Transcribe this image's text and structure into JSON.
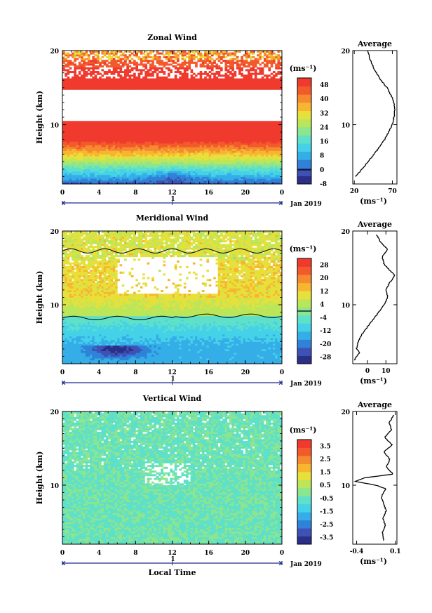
{
  "chart_data": [
    {
      "type": "heatmap",
      "title": "Zonal Wind",
      "xlabel": "",
      "ylabel": "Height (km)",
      "xlim": [
        0,
        24
      ],
      "ylim": [
        2,
        20
      ],
      "x_ticks": [
        "0",
        "4",
        "8",
        "12",
        "16",
        "20",
        "0"
      ],
      "y_ticks": [
        "10",
        "20"
      ],
      "date_label": "Jan 2019",
      "day_label": "1",
      "colorbar": {
        "unit": "(ms⁻¹)",
        "min": -8,
        "max": 52,
        "ticks": [
          "-8",
          "0",
          "8",
          "16",
          "24",
          "32",
          "40",
          "48"
        ],
        "tick_values": [
          -8,
          0,
          8,
          16,
          24,
          32,
          40,
          48
        ],
        "colors": [
          "#2b2f88",
          "#3e52b5",
          "#2f82d8",
          "#35aee8",
          "#45d2e8",
          "#5fe0c8",
          "#8ce58f",
          "#bce65a",
          "#e8e03a",
          "#f7b531",
          "#f68a2e",
          "#f25a2c",
          "#f03a2e"
        ],
        "contour_at": 0
      },
      "profile": {
        "title": "Average",
        "xlabel": "(ms⁻¹)",
        "x_ticks": [
          "20",
          "70"
        ],
        "x_tick_values": [
          20,
          70
        ],
        "xlim": [
          18,
          76
        ],
        "heights": [
          3,
          4,
          5,
          6,
          7,
          8,
          9,
          10,
          11,
          12,
          13,
          14,
          15,
          16,
          17,
          18,
          19,
          20
        ],
        "values": [
          22,
          30,
          38,
          46,
          53,
          60,
          65,
          70,
          72,
          73,
          72,
          68,
          63,
          55,
          49,
          44,
          40,
          38
        ]
      }
    },
    {
      "type": "heatmap",
      "title": "Meridional Wind",
      "xlabel": "",
      "ylabel": "Height (km)",
      "xlim": [
        0,
        24
      ],
      "ylim": [
        2,
        20
      ],
      "x_ticks": [
        "0",
        "4",
        "8",
        "12",
        "16",
        "20",
        "0"
      ],
      "y_ticks": [
        "10",
        "20"
      ],
      "date_label": "Jan 2019",
      "day_label": "1",
      "colorbar": {
        "unit": "(ms⁻¹)",
        "min": -32,
        "max": 32,
        "ticks": [
          "-28",
          "-20",
          "-12",
          "-4",
          "4",
          "12",
          "20",
          "28"
        ],
        "tick_values": [
          -28,
          -20,
          -12,
          -4,
          4,
          12,
          20,
          28
        ],
        "colors": [
          "#2b2f88",
          "#3e52b5",
          "#2f82d8",
          "#35aee8",
          "#45d2e8",
          "#5fe0c8",
          "#8ce58f",
          "#bce65a",
          "#e8e03a",
          "#f7b531",
          "#f68a2e",
          "#f25a2c",
          "#f03a2e"
        ],
        "contour_at": 0
      },
      "profile": {
        "title": "Average",
        "xlabel": "(ms⁻¹)",
        "x_ticks": [
          "0",
          "10"
        ],
        "x_tick_values": [
          0,
          10
        ],
        "xlim": [
          -8,
          16
        ],
        "heights": [
          2.5,
          3,
          3.5,
          4,
          5,
          6,
          7,
          8,
          9,
          10,
          11,
          12,
          13,
          14,
          14.7,
          15.5,
          16.5,
          17.5,
          18.5,
          19.5
        ],
        "values": [
          -7,
          -6,
          -4,
          -6,
          -5,
          -3,
          0,
          3,
          6,
          9,
          11,
          10,
          12,
          15,
          12,
          9,
          8,
          11,
          7,
          5
        ]
      }
    },
    {
      "type": "heatmap",
      "title": "Vertical Wind",
      "xlabel": "Local Time",
      "ylabel": "Height (km)",
      "xlim": [
        0,
        24
      ],
      "ylim": [
        2,
        20
      ],
      "x_ticks": [
        "0",
        "4",
        "8",
        "12",
        "16",
        "20",
        "0"
      ],
      "y_ticks": [
        "10",
        "20"
      ],
      "date_label": "Jan 2019",
      "day_label": "1",
      "colorbar": {
        "unit": "(ms⁻¹)",
        "min": -4,
        "max": 4,
        "ticks": [
          "-3.5",
          "-2.5",
          "-1.5",
          "-0.5",
          "0.5",
          "1.5",
          "2.5",
          "3.5"
        ],
        "tick_values": [
          -3.5,
          -2.5,
          -1.5,
          -0.5,
          0.5,
          1.5,
          2.5,
          3.5
        ],
        "colors": [
          "#2b2f88",
          "#3e52b5",
          "#2f82d8",
          "#35aee8",
          "#45d2e8",
          "#5fe0c8",
          "#8ce58f",
          "#bce65a",
          "#e8e03a",
          "#f7b531",
          "#f68a2e",
          "#f25a2c",
          "#f03a2e"
        ],
        "contour_at": null
      },
      "profile": {
        "title": "Average",
        "xlabel": "(ms⁻¹)",
        "x_ticks": [
          "-0.4",
          "0.1"
        ],
        "x_tick_values": [
          -0.4,
          0.1
        ],
        "xlim": [
          -0.45,
          0.12
        ],
        "heights": [
          2.5,
          3.5,
          4.5,
          5.5,
          6.5,
          7.5,
          8.5,
          9.5,
          10,
          10.5,
          11,
          11.5,
          12.5,
          13.5,
          14.5,
          15.5,
          16.5,
          17.5,
          18.5,
          19.5
        ],
        "values": [
          -0.05,
          -0.07,
          -0.03,
          -0.06,
          -0.02,
          -0.05,
          -0.08,
          -0.02,
          -0.15,
          -0.42,
          -0.3,
          0.07,
          -0.02,
          0.03,
          -0.05,
          0.06,
          -0.04,
          0.05,
          0.02,
          0.08
        ]
      }
    }
  ]
}
